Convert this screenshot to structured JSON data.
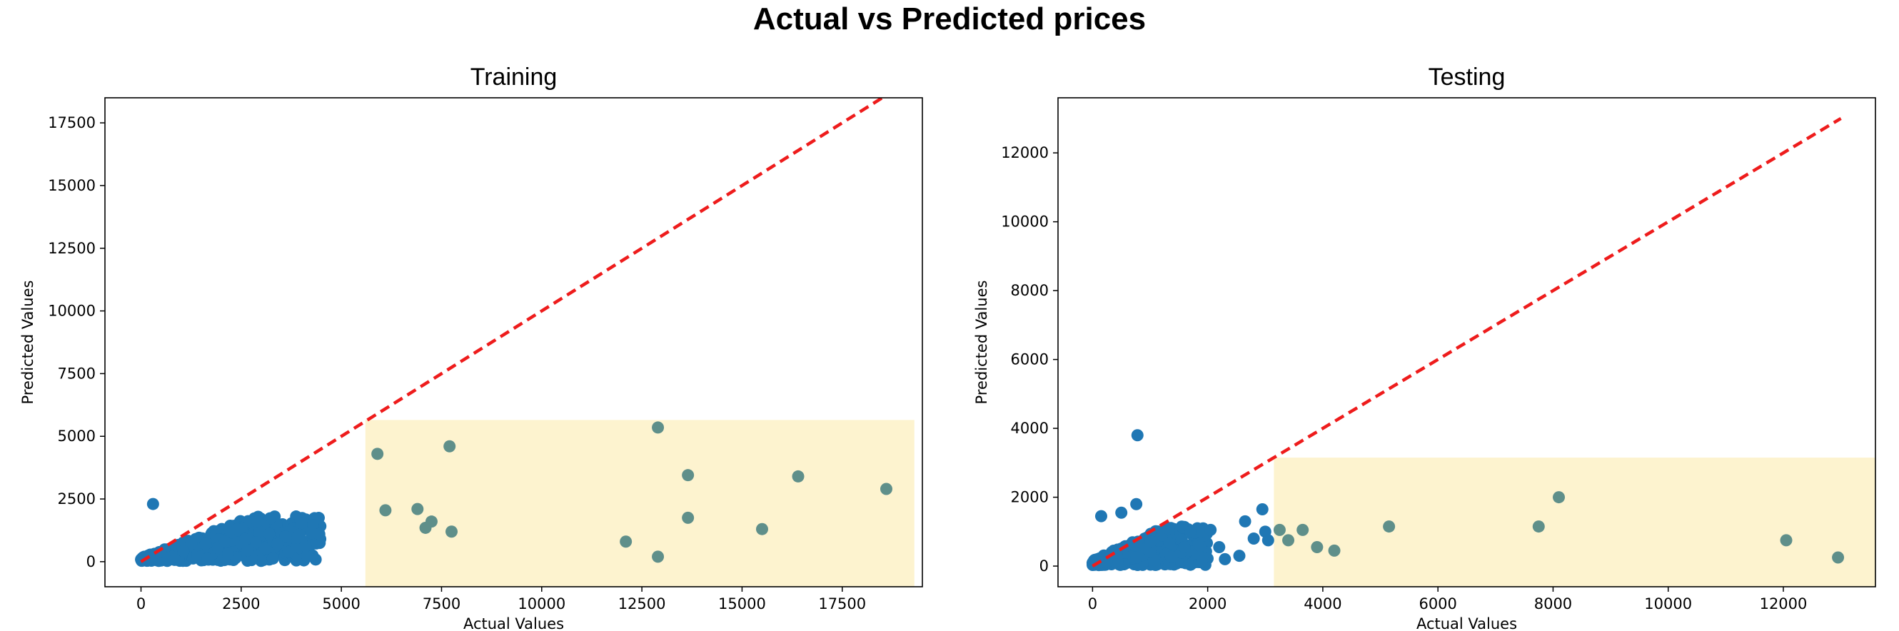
{
  "title": "Actual vs Predicted prices",
  "chart_data": [
    {
      "type": "scatter",
      "title": "Training",
      "xlabel": "Actual Values",
      "ylabel": "Predicted Values",
      "xlim": [
        -900,
        19500
      ],
      "ylim": [
        -1000,
        18500
      ],
      "xticks": [
        0,
        2500,
        5000,
        7500,
        10000,
        12500,
        15000,
        17500
      ],
      "yticks": [
        0,
        2500,
        5000,
        7500,
        10000,
        12500,
        15000,
        17500
      ],
      "xtick_labels": [
        "0",
        "2500",
        "5000",
        "7500",
        "10000",
        "12500",
        "15000",
        "17500"
      ],
      "ytick_labels": [
        "0",
        "2500",
        "5000",
        "7500",
        "10000",
        "12500",
        "15000",
        "17500"
      ],
      "reference_line": {
        "from": [
          0,
          0
        ],
        "to": [
          18600,
          18600
        ],
        "style": "dashed",
        "color": "#ee1c1c"
      },
      "highlight_region": {
        "x": [
          5600,
          19300
        ],
        "y": [
          -1000,
          5650
        ],
        "color": "#fdf3cf"
      },
      "point_color": "#1f77b4",
      "cluster": {
        "x_range": [
          0,
          4500
        ],
        "y_range": [
          0,
          2300
        ]
      },
      "points": [
        [
          300,
          2300
        ],
        [
          5900,
          4300
        ],
        [
          6100,
          2050
        ],
        [
          6900,
          2100
        ],
        [
          7100,
          1350
        ],
        [
          7250,
          1600
        ],
        [
          7700,
          4600
        ],
        [
          7750,
          1200
        ],
        [
          12900,
          5350
        ],
        [
          12100,
          800
        ],
        [
          12900,
          200
        ],
        [
          13650,
          3450
        ],
        [
          13650,
          1750
        ],
        [
          15500,
          1300
        ],
        [
          16400,
          3400
        ],
        [
          18600,
          2900
        ],
        [
          4450,
          1100
        ],
        [
          3900,
          950
        ],
        [
          3600,
          1000
        ],
        [
          3400,
          700
        ],
        [
          3200,
          1100
        ],
        [
          2900,
          1600
        ],
        [
          2600,
          900
        ],
        [
          2400,
          1300
        ]
      ]
    },
    {
      "type": "scatter",
      "title": "Testing",
      "xlabel": "Actual Values",
      "ylabel": "Predicted Values",
      "xlim": [
        -600,
        13600
      ],
      "ylim": [
        -600,
        13600
      ],
      "xticks": [
        0,
        2000,
        4000,
        6000,
        8000,
        10000,
        12000
      ],
      "yticks": [
        0,
        2000,
        4000,
        6000,
        8000,
        10000,
        12000
      ],
      "xtick_labels": [
        "0",
        "2000",
        "4000",
        "6000",
        "8000",
        "10000",
        "12000"
      ],
      "ytick_labels": [
        "0",
        "2000",
        "4000",
        "6000",
        "8000",
        "10000",
        "12000"
      ],
      "reference_line": {
        "from": [
          0,
          0
        ],
        "to": [
          13000,
          13000
        ],
        "style": "dashed",
        "color": "#ee1c1c"
      },
      "highlight_region": {
        "x": [
          3150,
          13600
        ],
        "y": [
          -600,
          3150
        ],
        "color": "#fdf3cf"
      },
      "point_color": "#1f77b4",
      "cluster": {
        "x_range": [
          0,
          2000
        ],
        "y_range": [
          0,
          1400
        ]
      },
      "points": [
        [
          780,
          3800
        ],
        [
          760,
          1800
        ],
        [
          500,
          1550
        ],
        [
          150,
          1450
        ],
        [
          2200,
          550
        ],
        [
          2300,
          200
        ],
        [
          2550,
          300
        ],
        [
          2650,
          1300
        ],
        [
          2800,
          800
        ],
        [
          2950,
          1650
        ],
        [
          3000,
          1000
        ],
        [
          3050,
          750
        ],
        [
          3250,
          1050
        ],
        [
          3400,
          750
        ],
        [
          3650,
          1050
        ],
        [
          3900,
          550
        ],
        [
          4200,
          450
        ],
        [
          5150,
          1150
        ],
        [
          7750,
          1150
        ],
        [
          8100,
          2000
        ],
        [
          12050,
          750
        ],
        [
          12950,
          250
        ],
        [
          1900,
          1000
        ],
        [
          2050,
          1050
        ]
      ]
    }
  ]
}
